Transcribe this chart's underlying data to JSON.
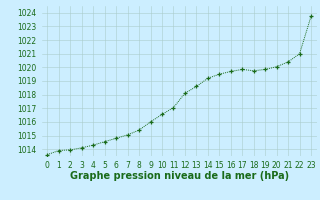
{
  "x": [
    0,
    1,
    2,
    3,
    4,
    5,
    6,
    7,
    8,
    9,
    10,
    11,
    12,
    13,
    14,
    15,
    16,
    17,
    18,
    19,
    20,
    21,
    22,
    23
  ],
  "y": [
    1013.6,
    1013.9,
    1013.95,
    1014.1,
    1014.3,
    1014.55,
    1014.8,
    1015.05,
    1015.4,
    1016.0,
    1016.55,
    1017.05,
    1018.1,
    1018.6,
    1019.2,
    1019.5,
    1019.7,
    1019.85,
    1019.75,
    1019.85,
    1020.05,
    1020.4,
    1021.0,
    1023.75
  ],
  "ylim": [
    1013.5,
    1024.5
  ],
  "xlim": [
    -0.5,
    23.5
  ],
  "yticks": [
    1014,
    1015,
    1016,
    1017,
    1018,
    1019,
    1020,
    1021,
    1022,
    1023,
    1024
  ],
  "xticks": [
    0,
    1,
    2,
    3,
    4,
    5,
    6,
    7,
    8,
    9,
    10,
    11,
    12,
    13,
    14,
    15,
    16,
    17,
    18,
    19,
    20,
    21,
    22,
    23
  ],
  "line_color": "#1a6b1a",
  "marker_color": "#1a6b1a",
  "bg_color": "#cceeff",
  "grid_color": "#aacccc",
  "xlabel": "Graphe pression niveau de la mer (hPa)",
  "xlabel_fontsize": 7,
  "tick_fontsize": 5.5,
  "fig_bg": "#cceeff"
}
